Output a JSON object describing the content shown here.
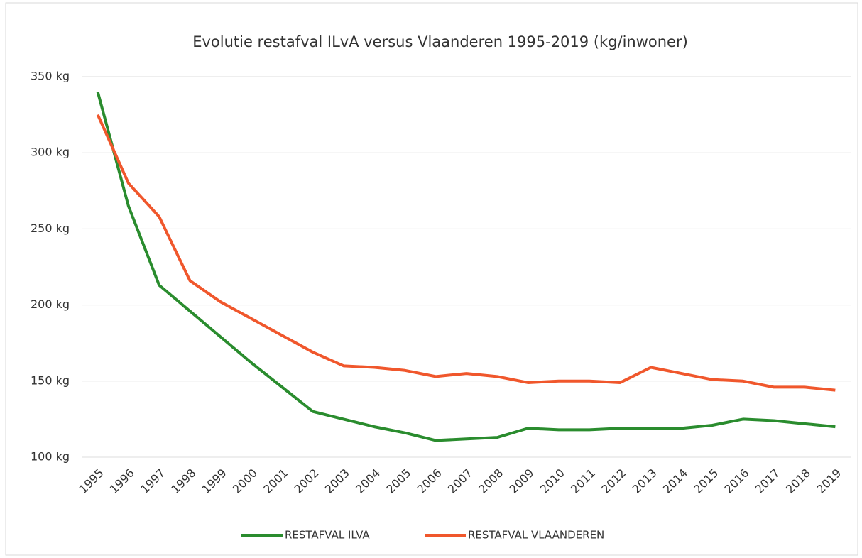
{
  "chart_data": {
    "type": "line",
    "title": "Evolutie restafval ILvA versus Vlaanderen 1995-2019 (kg/inwoner)",
    "categories": [
      "1995",
      "1996",
      "1997",
      "1998",
      "1999",
      "2000",
      "2001",
      "2002",
      "2003",
      "2004",
      "2005",
      "2006",
      "2007",
      "2008",
      "2009",
      "2010",
      "2011",
      "2012",
      "2013",
      "2014",
      "2015",
      "2016",
      "2017",
      "2018",
      "2019"
    ],
    "series": [
      {
        "name": "RESTAFVAL ILVA",
        "color": "#2a8c2e",
        "values": [
          340,
          265,
          213,
          196,
          179,
          162,
          146,
          130,
          125,
          120,
          116,
          111,
          112,
          113,
          119,
          118,
          118,
          119,
          119,
          119,
          121,
          125,
          124,
          122,
          120
        ]
      },
      {
        "name": "RESTAFVAL VLAANDEREN",
        "color": "#f0572c",
        "values": [
          325,
          280,
          258,
          216,
          202,
          191,
          180,
          169,
          160,
          159,
          157,
          153,
          155,
          153,
          149,
          150,
          150,
          149,
          159,
          155,
          151,
          150,
          146,
          146,
          144
        ]
      }
    ],
    "ylim": [
      100,
      350
    ],
    "yticks": [
      {
        "value": 100,
        "label": "100 kg"
      },
      {
        "value": 150,
        "label": "150 kg"
      },
      {
        "value": 200,
        "label": "200 kg"
      },
      {
        "value": 250,
        "label": "250 kg"
      },
      {
        "value": 300,
        "label": "300 kg"
      },
      {
        "value": 350,
        "label": "350 kg"
      }
    ],
    "grid": true,
    "legend": "bottom"
  }
}
